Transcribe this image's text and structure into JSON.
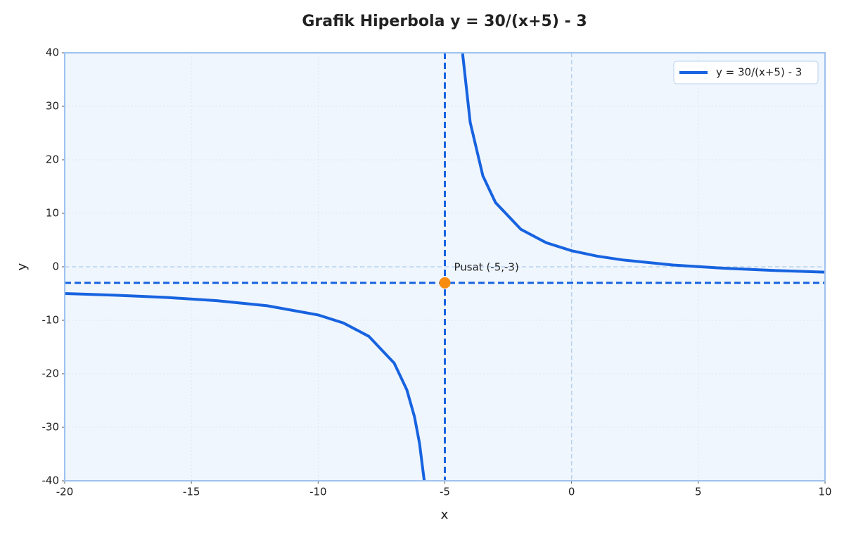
{
  "chart_data": {
    "type": "line",
    "title": "Grafik Hiperbola y = 30/(x+5) - 3",
    "x_label": "x",
    "y_label": "y",
    "x": [
      -20,
      -18,
      -16,
      -14,
      -12,
      -10,
      -9,
      -8,
      -7,
      -6.5,
      -6.2,
      -6,
      -5.8,
      null,
      -4.3,
      -4,
      -3.5,
      -3,
      -2,
      -1,
      0,
      1,
      2,
      4,
      6,
      8,
      10
    ],
    "series": [
      {
        "name": "y = 30/(x+5) - 3",
        "color": "#1763e0",
        "values": [
          -5,
          -5.31,
          -5.73,
          -6.33,
          -7.29,
          -9,
          -10.5,
          -13,
          -18,
          -23,
          -28,
          -33,
          -40.5,
          null,
          39.86,
          27,
          17,
          12,
          7,
          4.5,
          3,
          2,
          1.29,
          0.33,
          -0.27,
          -0.69,
          -1
        ]
      }
    ],
    "xlim": [
      -20,
      10
    ],
    "ylim": [
      -40,
      40
    ],
    "xticks": [
      -20,
      -15,
      -10,
      -5,
      0,
      5,
      10
    ],
    "yticks": [
      -40,
      -30,
      -20,
      -10,
      0,
      10,
      20,
      30,
      40
    ],
    "grid": true,
    "legend": "upper right",
    "axis_lines": {
      "x": 0,
      "y": 0
    },
    "asymptotes": {
      "x": -5,
      "y": -3,
      "color": "#1763e0"
    },
    "center": {
      "x": -5,
      "y": -3,
      "label": "Pusat (-5,-3)",
      "color": "#f78c0f"
    }
  }
}
